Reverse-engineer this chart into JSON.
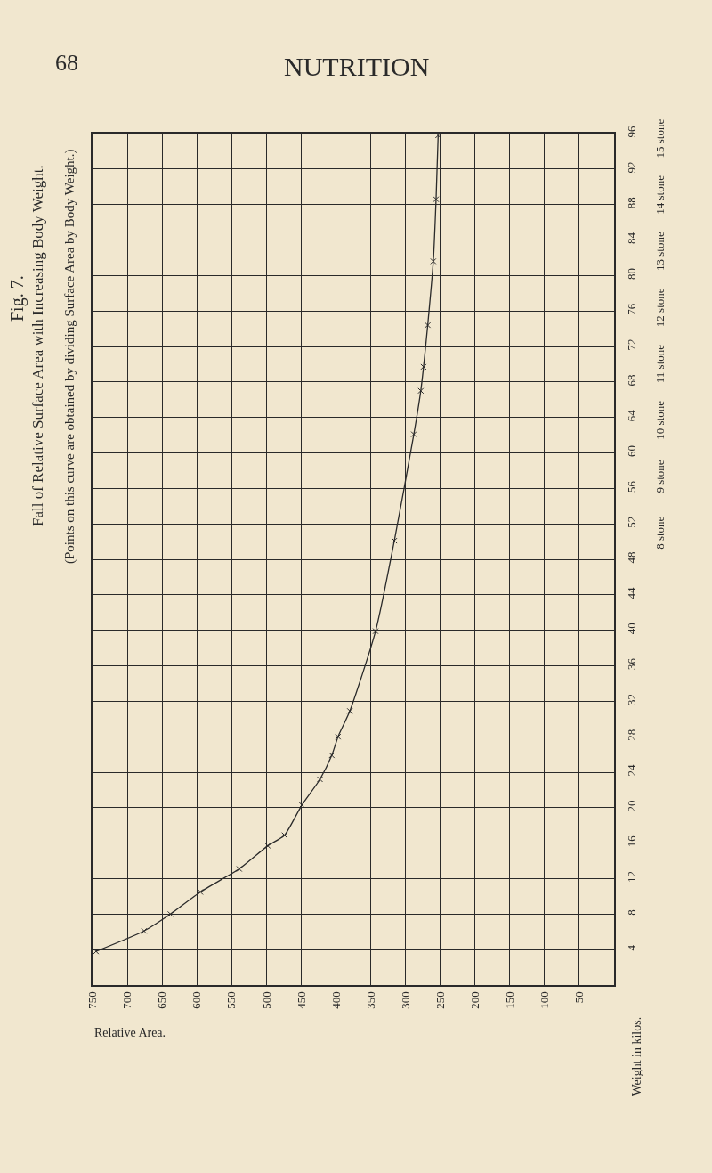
{
  "chart_data": {
    "type": "line",
    "title": "Fall of Relative Surface Area with Increasing Body Weight.",
    "subtitle": "(Points on this curve are obtained by dividing Surface Area by Body Weight.)",
    "xlabel": "Relative Area.",
    "ylabel": "Weight in kilos.",
    "annotations": [
      "68",
      "NUTRITION",
      "Fig. 7."
    ],
    "series": [
      {
        "color": "#2a2a2a",
        "x": [
          745,
          676,
          638,
          595,
          539,
          498,
          474,
          449,
          423,
          406,
          397,
          380,
          343,
          316,
          288,
          278,
          274,
          268,
          260,
          256,
          253
        ],
        "values": [
          3.8,
          6.1,
          8,
          10.5,
          13.1,
          15.7,
          16.9,
          20.3,
          23.2,
          25.9,
          28,
          30.9,
          39.9,
          50.1,
          62.1,
          67,
          69.7,
          74.4,
          81.6,
          88.6,
          95.8
        ]
      }
    ],
    "xlim": [
      750,
      0
    ],
    "xticks": [
      750,
      700,
      650,
      600,
      550,
      500,
      450,
      400,
      350,
      300,
      250,
      200,
      150,
      100,
      50
    ],
    "ylim": [
      0,
      96
    ],
    "yticks": [
      4,
      8,
      12,
      16,
      20,
      24,
      28,
      32,
      36,
      40,
      44,
      48,
      52,
      56,
      60,
      64,
      68,
      72,
      76,
      80,
      84,
      88,
      92,
      96
    ],
    "y2lim": [
      0,
      15.12
    ],
    "y2ticks": [
      {
        "value": 8,
        "label": "8 stone"
      },
      {
        "value": 9,
        "label": "9 stone"
      },
      {
        "value": 10,
        "label": "10 stone"
      },
      {
        "value": 11,
        "label": "11 stone"
      },
      {
        "value": 12,
        "label": "12 stone"
      },
      {
        "value": 13,
        "label": "13 stone"
      },
      {
        "value": 14,
        "label": "14 stone"
      },
      {
        "value": 15,
        "label": "15 stone"
      }
    ],
    "grid": true,
    "marker": "cross",
    "line_style": "solid"
  }
}
